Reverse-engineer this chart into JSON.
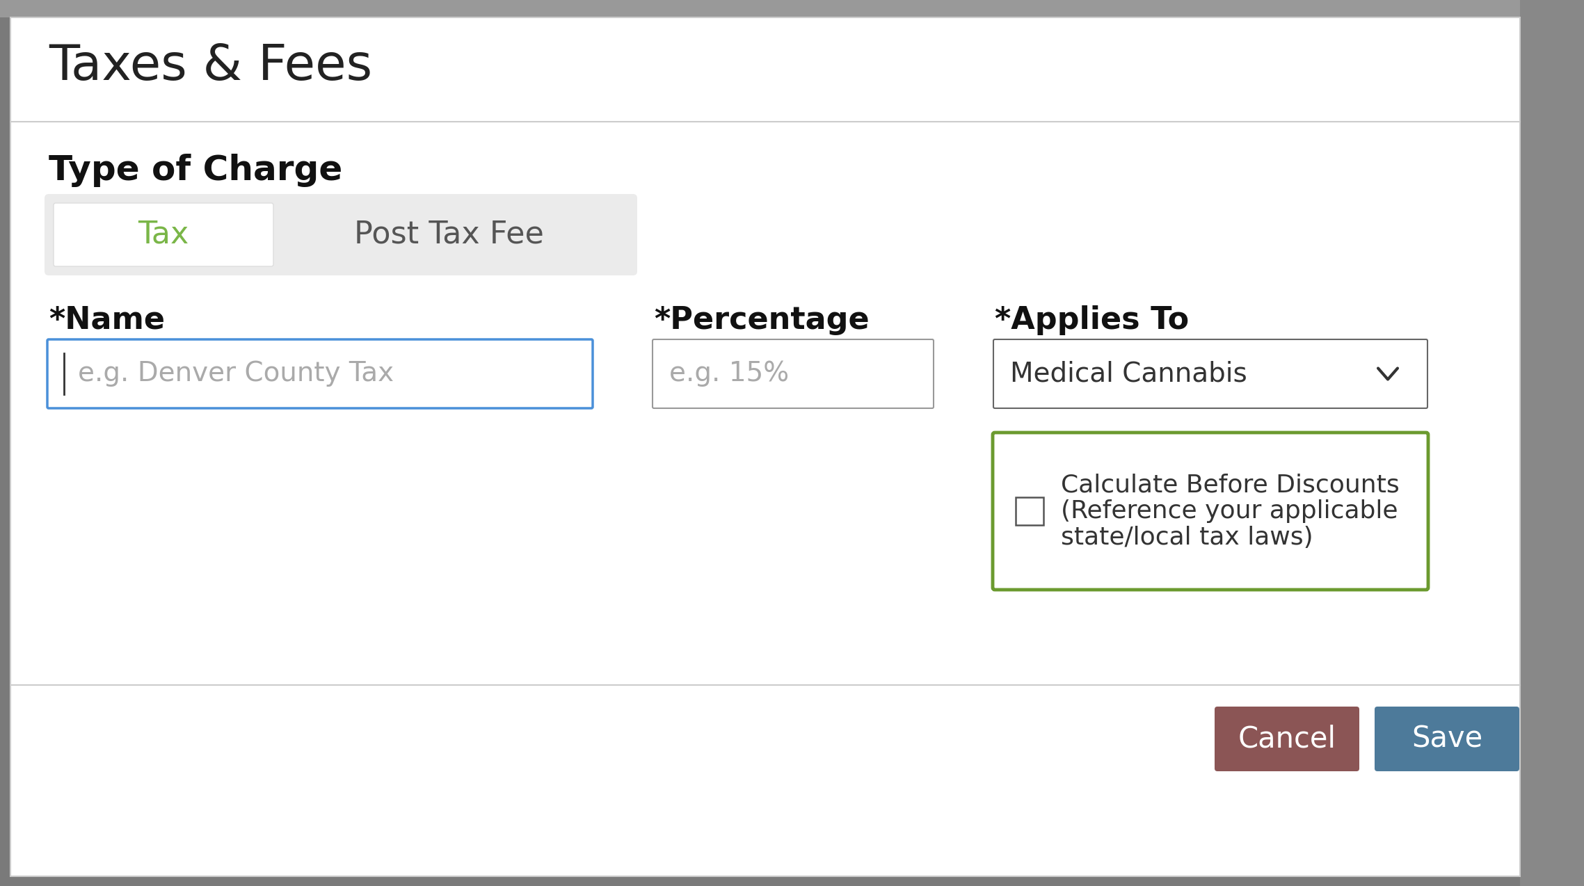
{
  "title": "Taxes & Fees",
  "section_label": "Type of Charge",
  "tab_tax": "Tax",
  "tab_post_tax": "Post Tax Fee",
  "field_name_label": "*Name",
  "field_name_placeholder": "e.g. Denver County Tax",
  "field_percentage_label": "*Percentage",
  "field_percentage_placeholder": "e.g. 15%",
  "field_applies_label": "*Applies To",
  "field_applies_value": "Medical Cannabis",
  "checkbox_line1": "Calculate Before Discounts",
  "checkbox_line2": "(Reference your applicable",
  "checkbox_line3": "state/local tax laws)",
  "cancel_btn": "Cancel",
  "save_btn": "Save",
  "modal_bg": "#ffffff",
  "overlay_color": "#7a7a7a",
  "title_color": "#222222",
  "section_label_color": "#111111",
  "tab_container_bg": "#ebebeb",
  "tab_active_bg": "#ffffff",
  "tab_tax_color": "#7ab648",
  "tab_post_tax_color": "#555555",
  "input_border_active": "#4a90d9",
  "input_border_normal": "#999999",
  "input_bg": "#ffffff",
  "placeholder_color": "#aaaaaa",
  "checkbox_border_color": "#6b9a2f",
  "checkbox_box_color": "#555555",
  "applies_bg": "#ffffff",
  "applies_border": "#666666",
  "cancel_bg": "#8b5555",
  "cancel_text": "#ffffff",
  "save_bg": "#4d7a9a",
  "save_text": "#ffffff",
  "divider_color": "#cccccc",
  "label_color": "#111111",
  "applies_text_color": "#333333",
  "dropdown_arrow_color": "#333333",
  "top_bar_color": "#aaaaaa",
  "right_bar_color": "#888888"
}
